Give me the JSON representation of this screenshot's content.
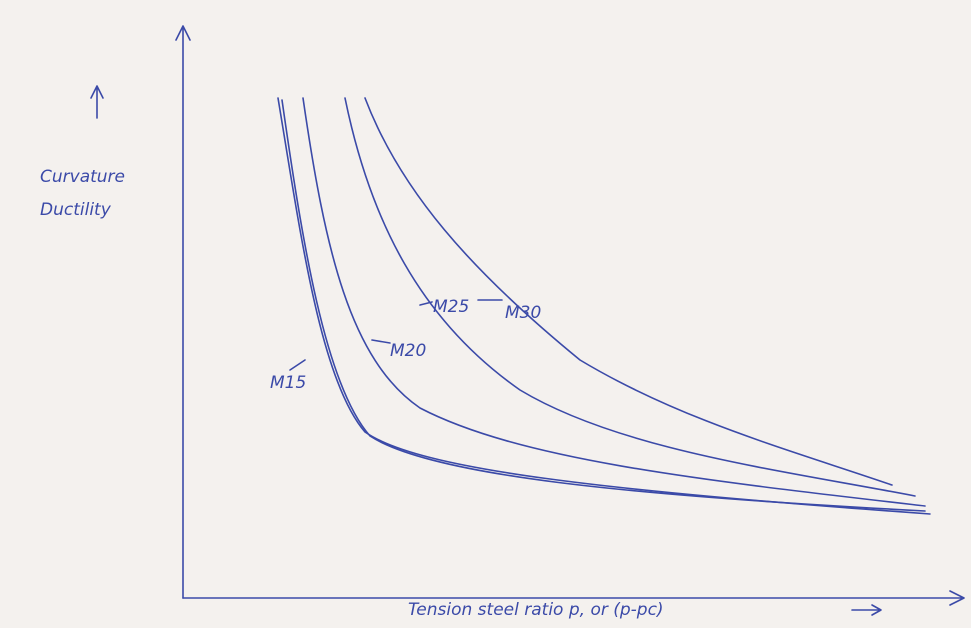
{
  "y_axis": {
    "label_lines": [
      "Curvature",
      "Ductility"
    ]
  },
  "x_axis": {
    "label": "Tension steel ratio p, or (p-pc)"
  },
  "curves": [
    {
      "label": "M15"
    },
    {
      "label": "M20"
    },
    {
      "label": "M25"
    },
    {
      "label": "M30"
    }
  ]
}
